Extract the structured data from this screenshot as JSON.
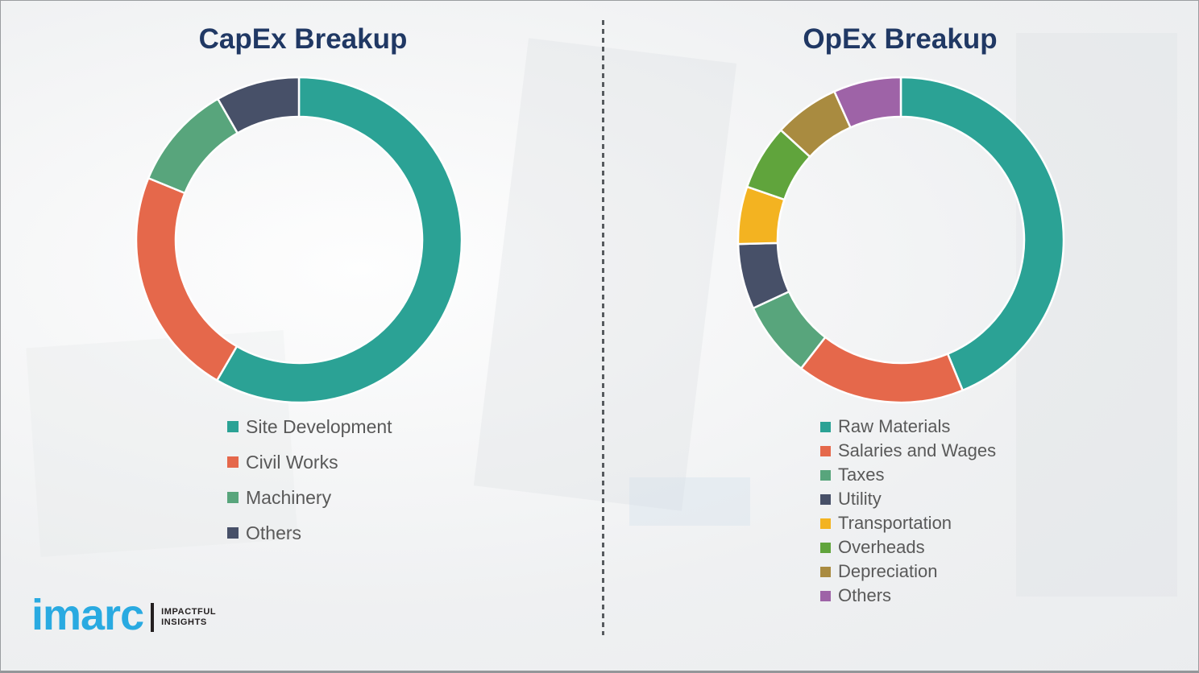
{
  "page": {
    "background_color": "#f1f2f3",
    "title_color": "#203864",
    "legend_text_color": "#595959",
    "divider_color": "#565a5e"
  },
  "chart_data": [
    {
      "type": "pie",
      "donut": true,
      "title": "CapEx Breakup",
      "legend_position": "bottom-left",
      "segments": [
        {
          "label": "Site Development",
          "value": 58.4,
          "color": "#2ba295"
        },
        {
          "label": "Civil Works",
          "value": 22.8,
          "color": "#e5684b"
        },
        {
          "label": "Machinery",
          "value": 10.5,
          "color": "#58a57c"
        },
        {
          "label": "Others",
          "value": 8.3,
          "color": "#475068"
        }
      ]
    },
    {
      "type": "pie",
      "donut": true,
      "title": "OpEx Breakup",
      "legend_position": "bottom-left",
      "segments": [
        {
          "label": "Raw Materials",
          "value": 43.8,
          "color": "#2ba295"
        },
        {
          "label": "Salaries and Wages",
          "value": 16.7,
          "color": "#e5684b"
        },
        {
          "label": "Taxes",
          "value": 7.6,
          "color": "#58a57c"
        },
        {
          "label": "Utility",
          "value": 6.5,
          "color": "#475068"
        },
        {
          "label": "Transportation",
          "value": 5.7,
          "color": "#f3b321"
        },
        {
          "label": "Overheads",
          "value": 6.5,
          "color": "#60a43c"
        },
        {
          "label": "Depreciation",
          "value": 6.5,
          "color": "#a98b40"
        },
        {
          "label": "Others",
          "value": 6.7,
          "color": "#9e63a7"
        }
      ]
    }
  ],
  "logo": {
    "brand": "imarc",
    "brand_color": "#29aae1",
    "tagline_line1": "IMPACTFUL",
    "tagline_line2": "INSIGHTS"
  }
}
